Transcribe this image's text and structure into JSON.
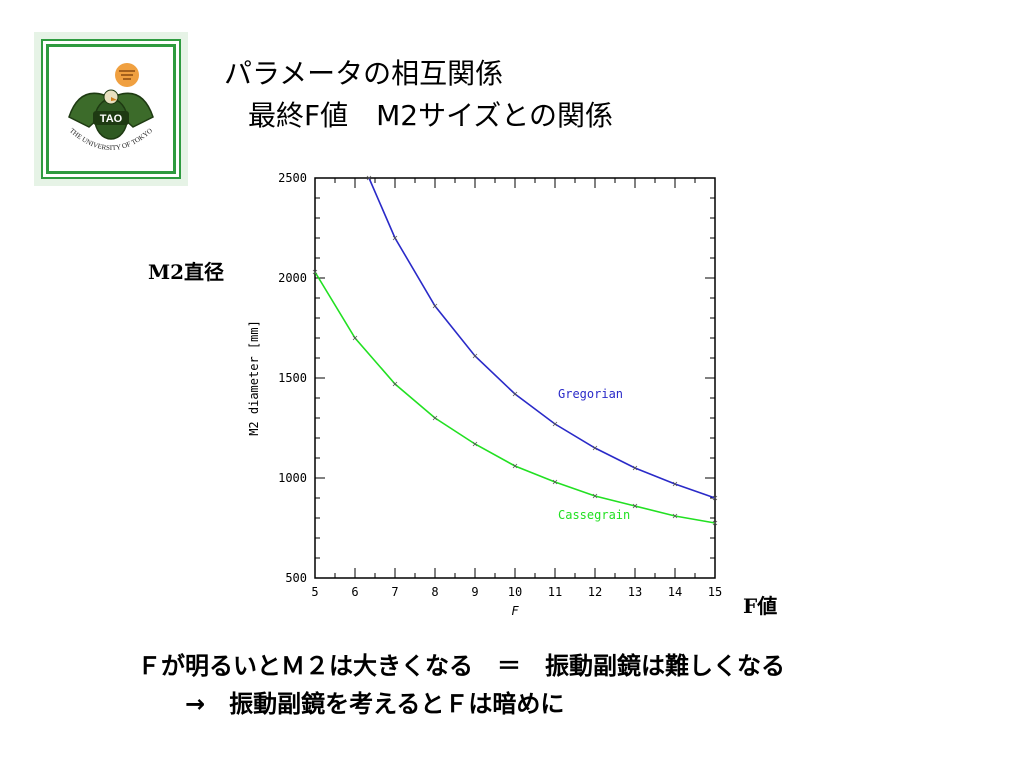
{
  "slide": {
    "title_line1": "パラメータの相互関係",
    "title_line2": "最終F値　M2サイズとの関係",
    "side_ylabel": "M2直径",
    "side_xlabel": "F値",
    "bottom_line1": "Ｆが明るいとＭ２は大きくなる　＝　振動副鏡は難しくなる",
    "bottom_line2": "→　振動副鏡を考えるとＦは暗めに"
  },
  "logo": {
    "badge_text": "TAO",
    "ring_text": "THE UNIVERSITY OF TOKYO",
    "border_color": "#2e9b3f"
  },
  "chart_data": {
    "type": "line",
    "xlabel": "F",
    "ylabel": "M2 diameter [mm]",
    "xlim": [
      5,
      15
    ],
    "ylim": [
      500,
      2500
    ],
    "xticks": [
      5,
      6,
      7,
      8,
      9,
      10,
      11,
      12,
      13,
      14,
      15
    ],
    "yticks": [
      500,
      1000,
      1500,
      2000,
      2500
    ],
    "grid": false,
    "series": [
      {
        "name": "Gregorian",
        "color": "#2a2ac8",
        "x": [
          6.35,
          7,
          8,
          9,
          10,
          11,
          12,
          13,
          14,
          15
        ],
        "y": [
          2500,
          2200,
          1860,
          1610,
          1420,
          1270,
          1150,
          1050,
          970,
          900
        ]
      },
      {
        "name": "Cassegrain",
        "color": "#22e022",
        "x": [
          5,
          6,
          7,
          8,
          9,
          10,
          11,
          12,
          13,
          14,
          15
        ],
        "y": [
          2030,
          1700,
          1470,
          1300,
          1170,
          1060,
          980,
          910,
          860,
          810,
          775
        ]
      }
    ]
  }
}
